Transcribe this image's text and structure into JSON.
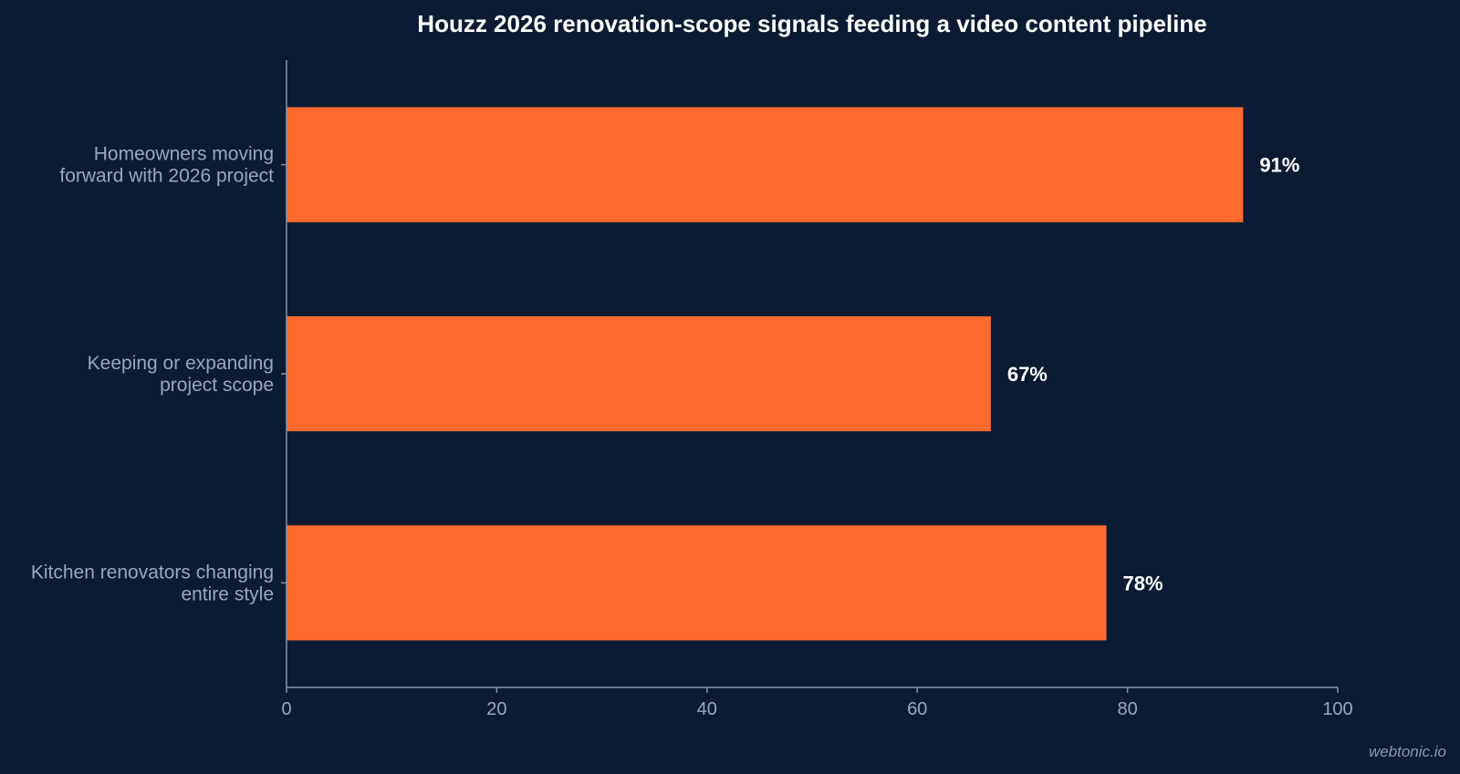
{
  "chart_data": {
    "type": "bar",
    "orientation": "horizontal",
    "title": "Houzz 2026 renovation-scope signals feeding a video content pipeline",
    "categories": [
      [
        "Homeowners moving",
        "forward with 2026 project"
      ],
      [
        "Keeping or expanding",
        "project scope"
      ],
      [
        "Kitchen renovators changing",
        "entire style"
      ]
    ],
    "values": [
      91,
      67,
      78
    ],
    "value_labels": [
      "91%",
      "67%",
      "78%"
    ],
    "xlim": [
      0,
      100
    ],
    "xticks": [
      0,
      20,
      40,
      60,
      80,
      100
    ],
    "xtick_labels": [
      "0",
      "20",
      "40",
      "60",
      "80",
      "100"
    ],
    "xlabel": "",
    "ylabel": "",
    "grid": false,
    "colors": {
      "background": "#0c1b33",
      "bar": "#ff6b2e",
      "axis": "#8592a6",
      "text_muted": "#9aa7bb",
      "text": "#ffffff"
    }
  },
  "watermark": "webtonic.io"
}
